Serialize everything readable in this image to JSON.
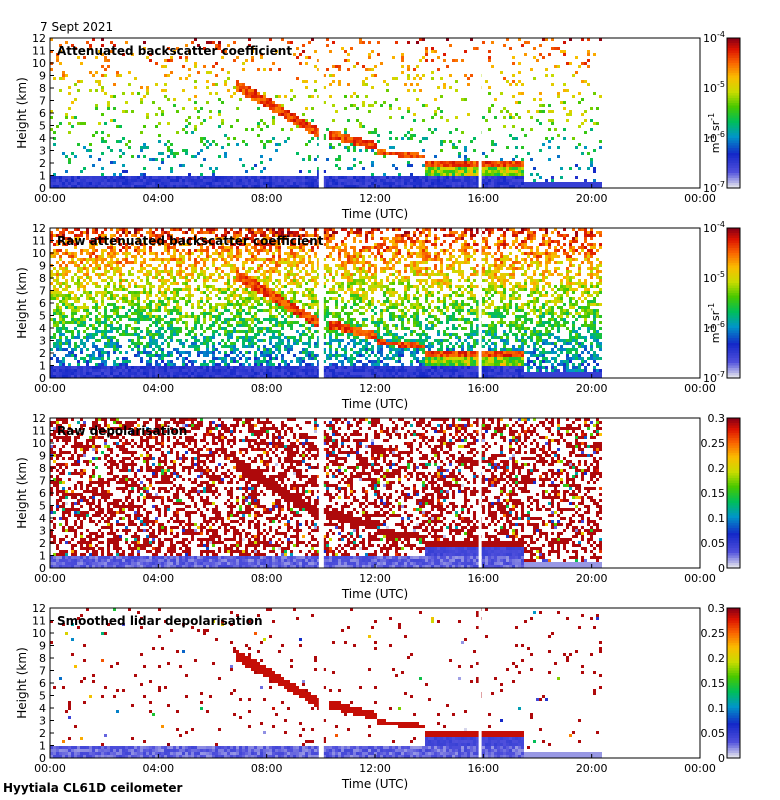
{
  "date": "7 Sept 2021",
  "footer": "Hyytiala CL61D ceilometer",
  "colors": {
    "background_scatter": "#d8d8e4",
    "panel_frame": "#000000",
    "data_gap": "#ffffff"
  },
  "chart_data": [
    {
      "type": "heatmap",
      "title": "Attenuated backscatter coefficient",
      "xlabel": "Time (UTC)",
      "ylabel": "Height (km)",
      "x_ticks": [
        "00:00",
        "04:00",
        "08:00",
        "12:00",
        "16:00",
        "20:00",
        "00:00"
      ],
      "xlim": [
        0,
        24
      ],
      "y_ticks": [
        0,
        1,
        2,
        3,
        4,
        5,
        6,
        7,
        8,
        9,
        10,
        11,
        12
      ],
      "ylim": [
        0,
        12
      ],
      "data_end_hour": 20.3,
      "gaps_hours": [
        10.0,
        15.9
      ],
      "colorbar": {
        "scale": "log",
        "ticks": [
          "10^-4",
          "10^-5",
          "10^-6",
          "10^-7"
        ],
        "unit": "m^-1 sr^-1",
        "colormap": "rainbow-grey"
      }
    },
    {
      "type": "heatmap",
      "title": "Raw attenuated backscatter coefficient",
      "xlabel": "Time (UTC)",
      "ylabel": "Height (km)",
      "x_ticks": [
        "00:00",
        "04:00",
        "08:00",
        "12:00",
        "16:00",
        "20:00",
        "00:00"
      ],
      "xlim": [
        0,
        24
      ],
      "y_ticks": [
        0,
        1,
        2,
        3,
        4,
        5,
        6,
        7,
        8,
        9,
        10,
        11,
        12
      ],
      "ylim": [
        0,
        12
      ],
      "data_end_hour": 20.3,
      "gaps_hours": [
        10.0,
        15.9
      ],
      "colorbar": {
        "scale": "log",
        "ticks": [
          "10^-4",
          "10^-5",
          "10^-6",
          "10^-7"
        ],
        "unit": "m^-1 sr^-1",
        "colormap": "rainbow-grey"
      }
    },
    {
      "type": "heatmap",
      "title": "Raw depolarisation",
      "xlabel": "Time (UTC)",
      "ylabel": "Height (km)",
      "x_ticks": [
        "00:00",
        "04:00",
        "08:00",
        "12:00",
        "16:00",
        "20:00",
        "00:00"
      ],
      "xlim": [
        0,
        24
      ],
      "y_ticks": [
        0,
        1,
        2,
        3,
        4,
        5,
        6,
        7,
        8,
        9,
        10,
        11,
        12
      ],
      "ylim": [
        0,
        12
      ],
      "data_end_hour": 20.3,
      "gaps_hours": [
        10.0,
        15.9
      ],
      "colorbar": {
        "scale": "linear",
        "ticks": [
          "0.3",
          "0.25",
          "0.2",
          "0.15",
          "0.1",
          "0.05",
          "0"
        ],
        "colormap": "rainbow-grey"
      }
    },
    {
      "type": "heatmap",
      "title": "Smoothed lidar depolarisation",
      "xlabel": "Time (UTC)",
      "ylabel": "Height (km)",
      "x_ticks": [
        "00:00",
        "04:00",
        "08:00",
        "12:00",
        "16:00",
        "20:00",
        "00:00"
      ],
      "xlim": [
        0,
        24
      ],
      "y_ticks": [
        0,
        1,
        2,
        3,
        4,
        5,
        6,
        7,
        8,
        9,
        10,
        11,
        12
      ],
      "ylim": [
        0,
        12
      ],
      "data_end_hour": 20.3,
      "gaps_hours": [
        10.0,
        15.9
      ],
      "colorbar": {
        "scale": "linear",
        "ticks": [
          "0.3",
          "0.25",
          "0.2",
          "0.15",
          "0.1",
          "0.05",
          "0"
        ],
        "colormap": "rainbow-grey"
      }
    }
  ]
}
